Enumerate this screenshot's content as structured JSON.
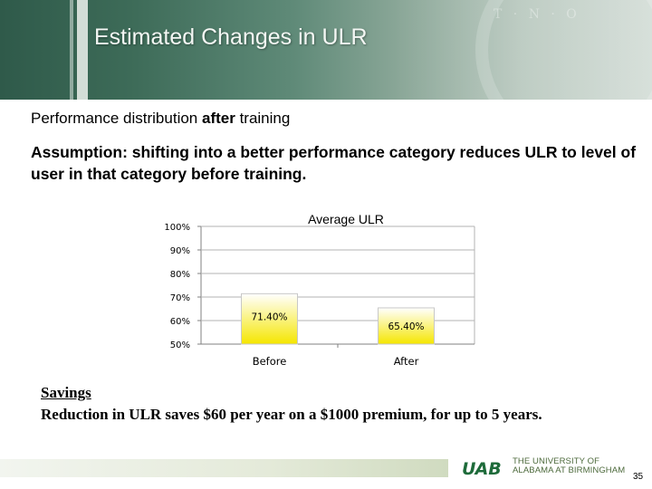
{
  "header": {
    "title": "Estimated Changes in ULR"
  },
  "subtitle": {
    "prefix": "Performance distribution ",
    "emphasis": "after",
    "suffix": " training"
  },
  "assumption": "Assumption: shifting into a better performance category reduces ULR to level of user in that category before training.",
  "chart_data": {
    "type": "bar",
    "title": "Average ULR",
    "categories": [
      "Before",
      "After"
    ],
    "values": [
      71.4,
      65.4
    ],
    "data_labels": [
      "71.40%",
      "65.40%"
    ],
    "ylim": [
      50,
      100
    ],
    "yticks": [
      "50%",
      "60%",
      "70%",
      "80%",
      "90%",
      "100%"
    ],
    "grid": true,
    "legend": "none",
    "colors": {
      "bar_top": "#ffffff",
      "bar_bottom": "#f5e600",
      "grid": "#b3b3b3"
    }
  },
  "savings": {
    "heading": "Savings",
    "body": "Reduction in ULR saves $60 per year on a $1000 premium, for up to 5 years."
  },
  "footer": {
    "logo_letters": "UAB",
    "university_line1": "THE UNIVERSITY OF",
    "university_line2": "ALABAMA AT BIRMINGHAM",
    "slide_number": "35",
    "brand_color": "#1e6b3a"
  }
}
